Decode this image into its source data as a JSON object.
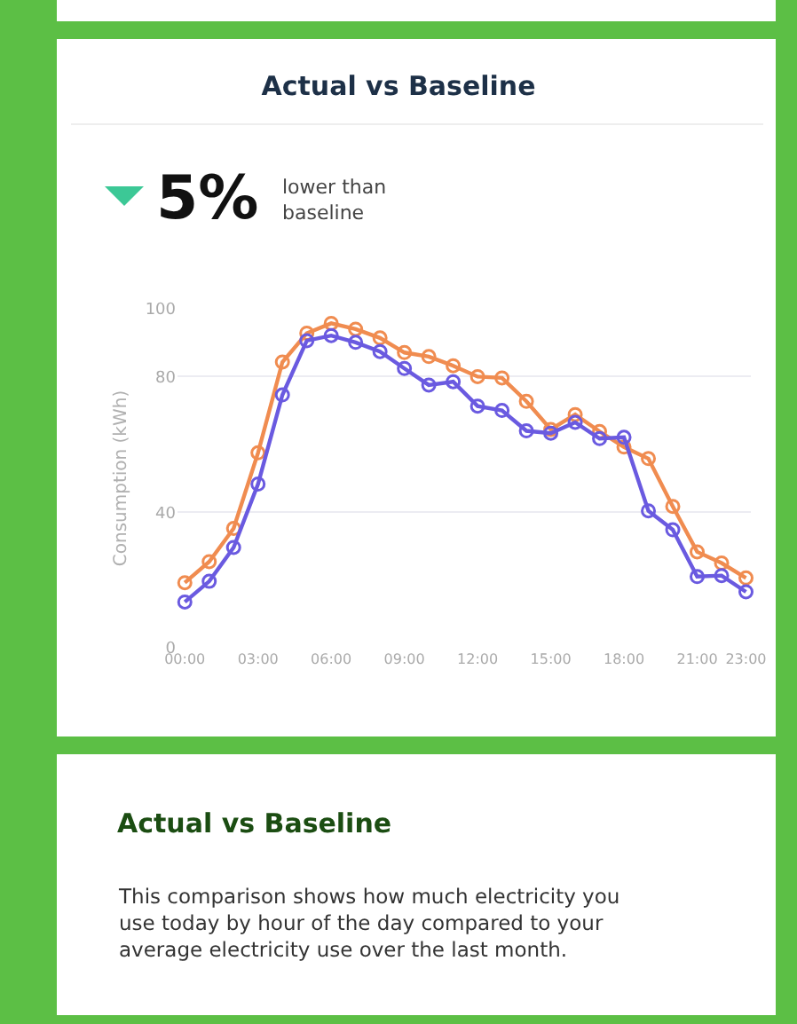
{
  "chart_data": {
    "type": "line",
    "title": "Actual vs Baseline",
    "ylabel": "Consumption (kWh)",
    "annotations": [
      "5%",
      "lower than\nbaseline",
      "Actual vs Baseline",
      "This comparison shows how much electricity you\nuse today by hour of the day compared to your\naverage electricity use over the last month."
    ],
    "x": [
      0,
      1,
      2,
      3,
      4,
      5,
      6,
      7,
      8,
      9,
      10,
      11,
      12,
      13,
      14,
      15,
      16,
      17,
      18,
      19,
      20,
      21,
      22,
      23
    ],
    "series": [
      {
        "color": "#f08c50",
        "values": [
          19.2,
          25.4,
          35.2,
          57.5,
          84.3,
          92.8,
          95.7,
          94.0,
          91.4,
          87.1,
          85.9,
          83.2,
          80,
          79.6,
          72.7,
          64.4,
          68.8,
          63.8,
          59.2,
          55.8,
          41.7,
          28.3,
          25,
          20.6
        ]
      },
      {
        "color": "#6a5ae0",
        "values": [
          13.5,
          19.6,
          29.6,
          48.3,
          74.6,
          90.6,
          92.1,
          90.1,
          87.4,
          82.4,
          77.5,
          78.5,
          71.3,
          70,
          64,
          63.3,
          66.5,
          61.7,
          62.1,
          40.4,
          34.8,
          21,
          21.3,
          16.5
        ]
      }
    ],
    "xlim": [
      -0.3,
      23.2
    ],
    "xticks": [
      {
        "value": 0,
        "label": "00:00"
      },
      {
        "value": 3,
        "label": "03:00"
      },
      {
        "value": 6,
        "label": "06:00"
      },
      {
        "value": 9,
        "label": "09:00"
      },
      {
        "value": 12,
        "label": "12:00"
      },
      {
        "value": 15,
        "label": "15:00"
      },
      {
        "value": 18,
        "label": "18:00"
      },
      {
        "value": 21,
        "label": "21:00"
      },
      {
        "value": 23,
        "label": "23:00"
      }
    ],
    "ylim": [
      0,
      100
    ],
    "yticks": [
      0,
      40,
      80,
      100
    ],
    "grid": "y",
    "marker": "circle",
    "line_style": "solid"
  }
}
